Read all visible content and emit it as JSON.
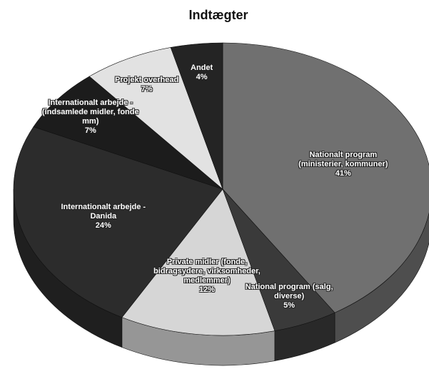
{
  "chart_data": {
    "type": "pie3d",
    "title": "Indtægter",
    "categories": [
      "Nationalt program (ministerier, kommuner)",
      "National program (salg, diverse)",
      "Private midler (fonde, bidragsydere, virksomheder, medlemmer)",
      "Internationalt arbejde - Danida",
      "Internationalt arbejde - (indsamlede midler, fonde mm)",
      "Projekt overhead",
      "Andet"
    ],
    "values": [
      41,
      5,
      12,
      24,
      7,
      7,
      4
    ],
    "value_labels": [
      "41%",
      "5%",
      "12%",
      "24%",
      "7%",
      "7%",
      "4%"
    ],
    "colors": [
      "#707070",
      "#3a3a3a",
      "#d6d6d6",
      "#2c2c2c",
      "#1c1c1c",
      "#e2e2e2",
      "#242424"
    ]
  }
}
